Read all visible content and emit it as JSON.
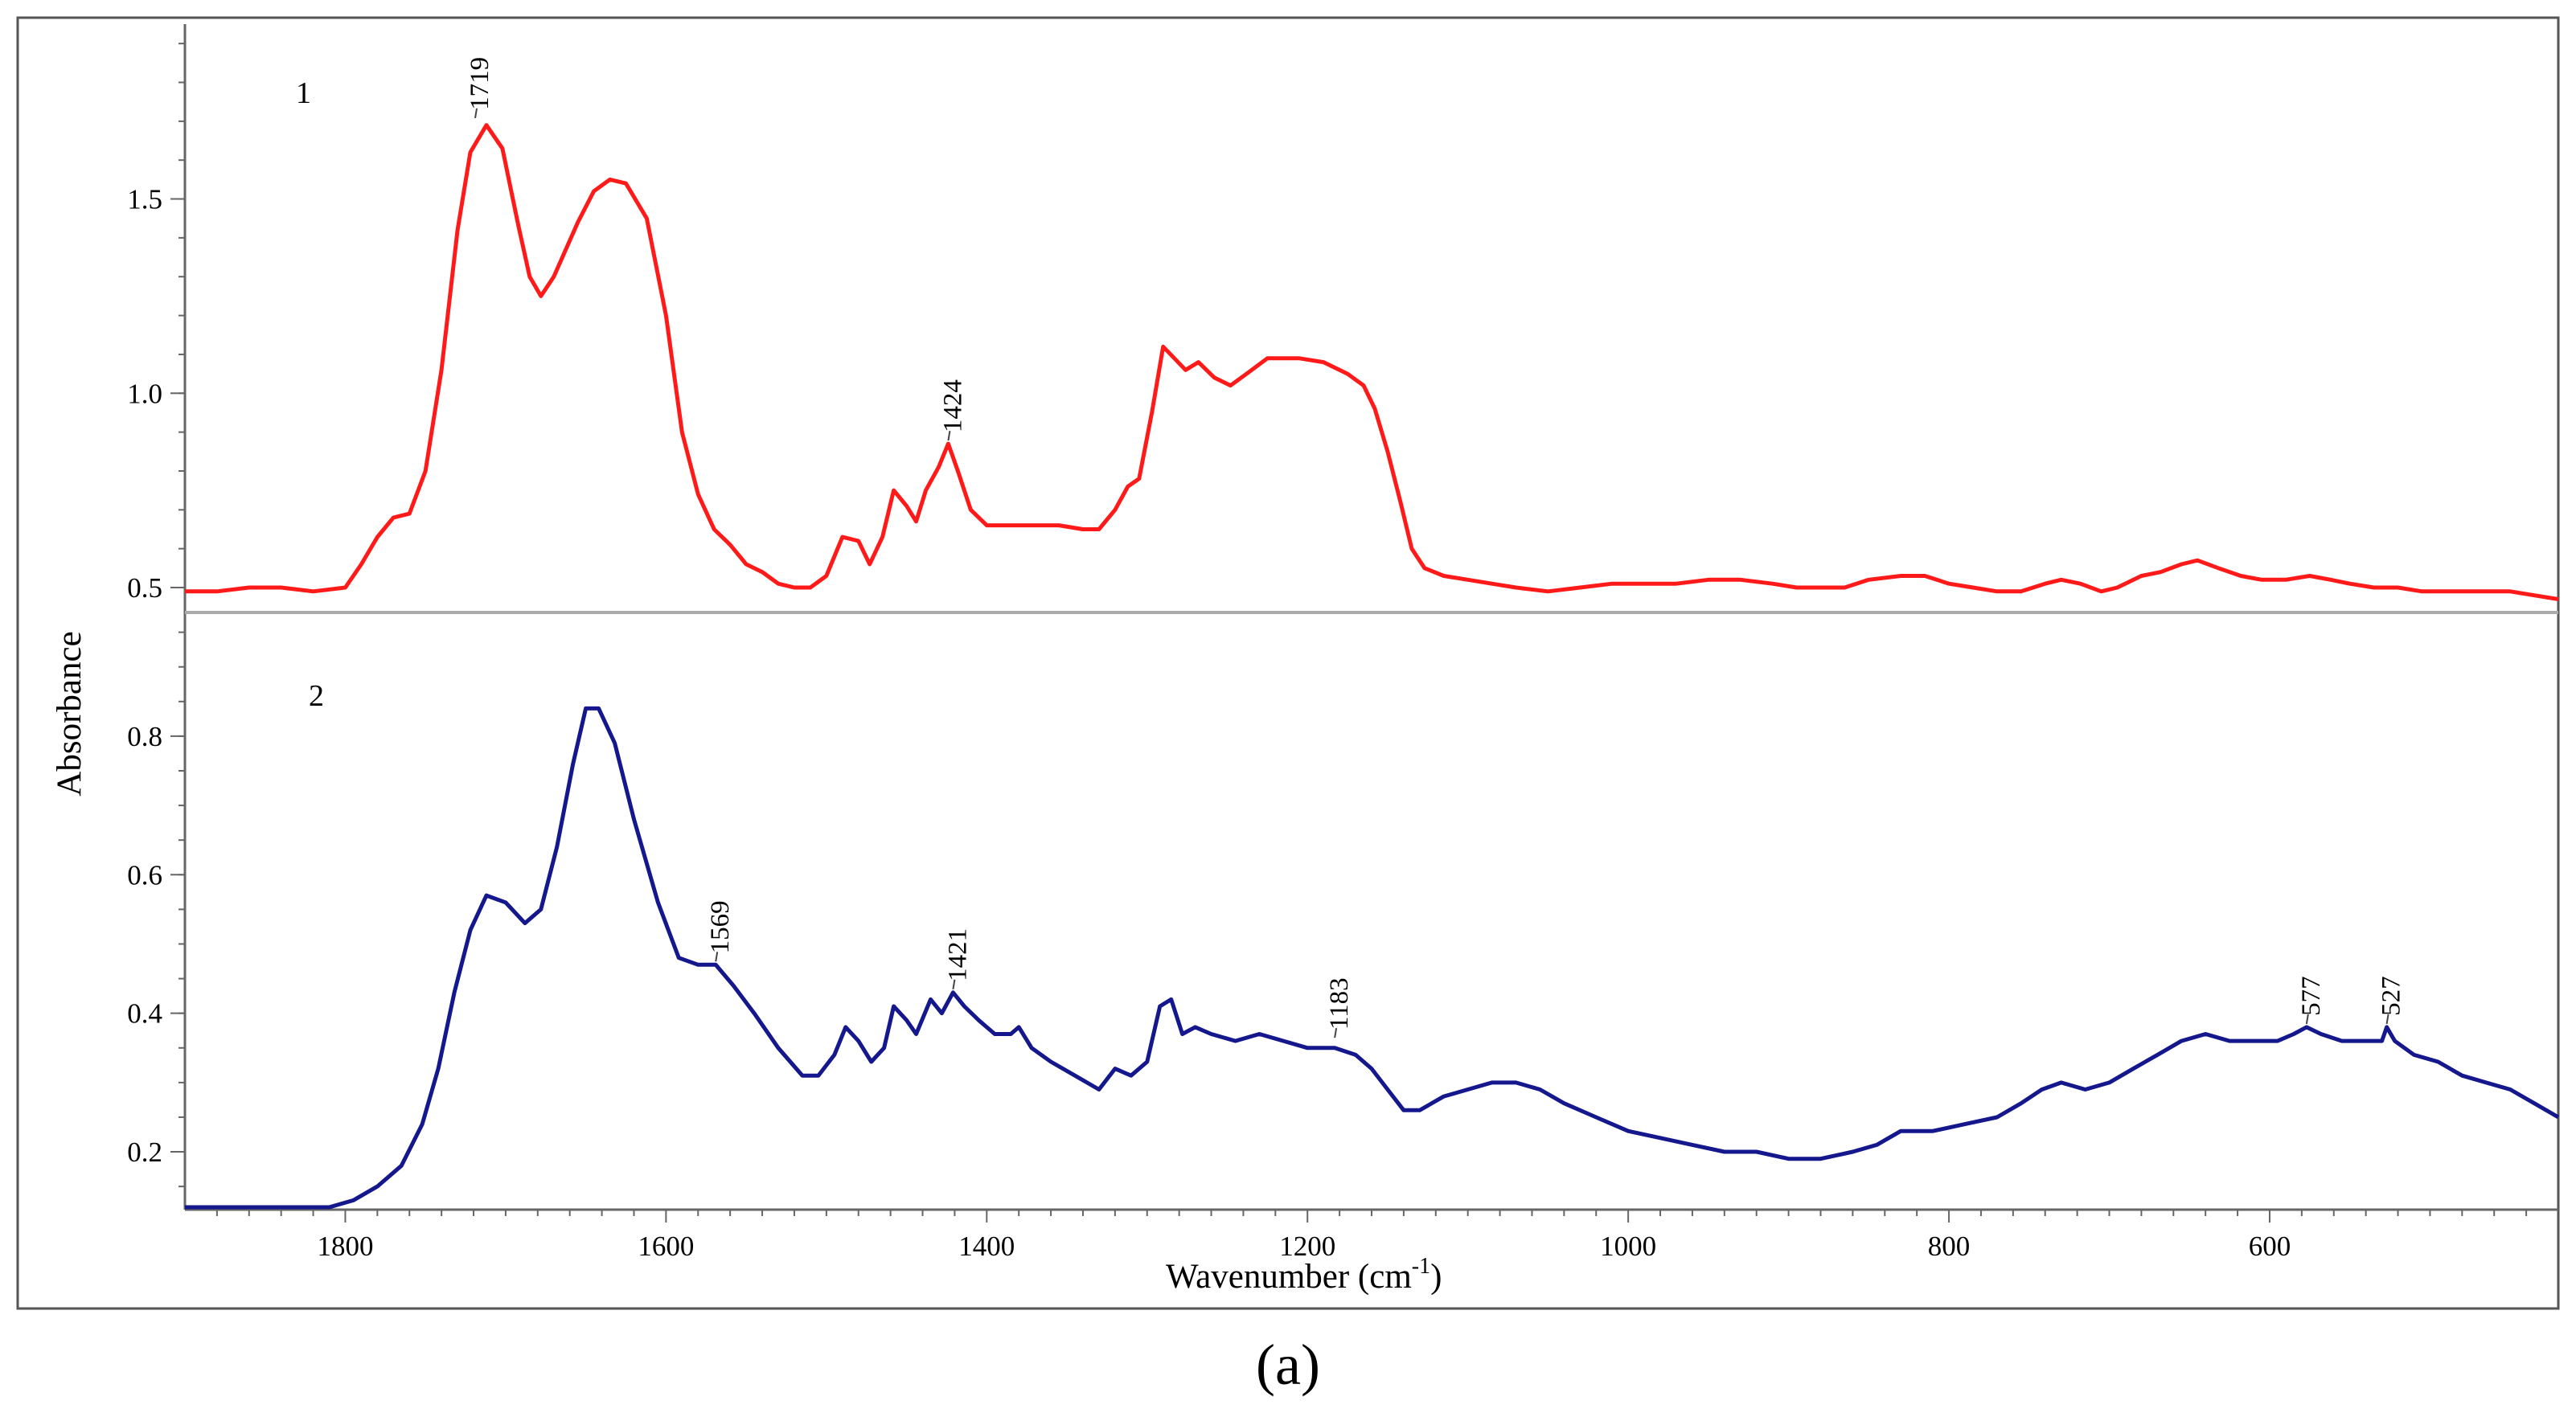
{
  "chart_data": {
    "type": "line",
    "figure_label": "(a)",
    "xlabel": "Wavenumber (cm",
    "xlabel_sup": "-1",
    "xlabel_end": ")",
    "ylabel": "Absorbance",
    "x_range": [
      1900,
      420
    ],
    "x_ticks": [
      1800,
      1600,
      1400,
      1200,
      1000,
      800,
      600
    ],
    "panels": [
      {
        "id": "top",
        "trace_label": "1",
        "color": "#ff1a1a",
        "y_range": [
          0.44,
          1.95
        ],
        "y_ticks": [
          {
            "value": 0.5,
            "label": "0.5"
          },
          {
            "value": 1.0,
            "label": "1.0"
          },
          {
            "value": 1.5,
            "label": "1.5"
          }
        ],
        "peaks": [
          {
            "x": 1719,
            "y": 1.7,
            "label": "1719"
          },
          {
            "x": 1424,
            "y": 0.87,
            "label": "1424"
          }
        ],
        "points": [
          [
            1900,
            0.49
          ],
          [
            1880,
            0.49
          ],
          [
            1860,
            0.5
          ],
          [
            1840,
            0.5
          ],
          [
            1820,
            0.49
          ],
          [
            1800,
            0.5
          ],
          [
            1790,
            0.56
          ],
          [
            1780,
            0.63
          ],
          [
            1770,
            0.68
          ],
          [
            1760,
            0.69
          ],
          [
            1750,
            0.8
          ],
          [
            1740,
            1.06
          ],
          [
            1730,
            1.42
          ],
          [
            1722,
            1.62
          ],
          [
            1712,
            1.69
          ],
          [
            1702,
            1.63
          ],
          [
            1692,
            1.43
          ],
          [
            1685,
            1.3
          ],
          [
            1678,
            1.25
          ],
          [
            1670,
            1.3
          ],
          [
            1655,
            1.44
          ],
          [
            1645,
            1.52
          ],
          [
            1635,
            1.55
          ],
          [
            1625,
            1.54
          ],
          [
            1612,
            1.45
          ],
          [
            1600,
            1.2
          ],
          [
            1590,
            0.9
          ],
          [
            1580,
            0.74
          ],
          [
            1570,
            0.65
          ],
          [
            1560,
            0.61
          ],
          [
            1550,
            0.56
          ],
          [
            1540,
            0.54
          ],
          [
            1530,
            0.51
          ],
          [
            1520,
            0.5
          ],
          [
            1510,
            0.5
          ],
          [
            1500,
            0.53
          ],
          [
            1490,
            0.63
          ],
          [
            1480,
            0.62
          ],
          [
            1473,
            0.56
          ],
          [
            1465,
            0.63
          ],
          [
            1458,
            0.75
          ],
          [
            1450,
            0.71
          ],
          [
            1444,
            0.67
          ],
          [
            1438,
            0.75
          ],
          [
            1430,
            0.81
          ],
          [
            1424,
            0.87
          ],
          [
            1418,
            0.8
          ],
          [
            1410,
            0.7
          ],
          [
            1400,
            0.66
          ],
          [
            1385,
            0.66
          ],
          [
            1370,
            0.66
          ],
          [
            1355,
            0.66
          ],
          [
            1340,
            0.65
          ],
          [
            1330,
            0.65
          ],
          [
            1320,
            0.7
          ],
          [
            1312,
            0.76
          ],
          [
            1305,
            0.78
          ],
          [
            1297,
            0.95
          ],
          [
            1290,
            1.12
          ],
          [
            1283,
            1.09
          ],
          [
            1276,
            1.06
          ],
          [
            1268,
            1.08
          ],
          [
            1258,
            1.04
          ],
          [
            1248,
            1.02
          ],
          [
            1238,
            1.05
          ],
          [
            1225,
            1.09
          ],
          [
            1205,
            1.09
          ],
          [
            1190,
            1.08
          ],
          [
            1175,
            1.05
          ],
          [
            1165,
            1.02
          ],
          [
            1158,
            0.96
          ],
          [
            1150,
            0.85
          ],
          [
            1142,
            0.72
          ],
          [
            1135,
            0.6
          ],
          [
            1127,
            0.55
          ],
          [
            1115,
            0.53
          ],
          [
            1100,
            0.52
          ],
          [
            1085,
            0.51
          ],
          [
            1070,
            0.5
          ],
          [
            1050,
            0.49
          ],
          [
            1030,
            0.5
          ],
          [
            1010,
            0.51
          ],
          [
            990,
            0.51
          ],
          [
            970,
            0.51
          ],
          [
            950,
            0.52
          ],
          [
            930,
            0.52
          ],
          [
            910,
            0.51
          ],
          [
            895,
            0.5
          ],
          [
            880,
            0.5
          ],
          [
            865,
            0.5
          ],
          [
            850,
            0.52
          ],
          [
            830,
            0.53
          ],
          [
            815,
            0.53
          ],
          [
            800,
            0.51
          ],
          [
            785,
            0.5
          ],
          [
            770,
            0.49
          ],
          [
            755,
            0.49
          ],
          [
            740,
            0.51
          ],
          [
            730,
            0.52
          ],
          [
            718,
            0.51
          ],
          [
            705,
            0.49
          ],
          [
            695,
            0.5
          ],
          [
            680,
            0.53
          ],
          [
            668,
            0.54
          ],
          [
            655,
            0.56
          ],
          [
            645,
            0.57
          ],
          [
            632,
            0.55
          ],
          [
            618,
            0.53
          ],
          [
            605,
            0.52
          ],
          [
            590,
            0.52
          ],
          [
            575,
            0.53
          ],
          [
            562,
            0.52
          ],
          [
            550,
            0.51
          ],
          [
            535,
            0.5
          ],
          [
            520,
            0.5
          ],
          [
            505,
            0.49
          ],
          [
            490,
            0.49
          ],
          [
            470,
            0.49
          ],
          [
            450,
            0.49
          ],
          [
            435,
            0.48
          ],
          [
            420,
            0.47
          ]
        ]
      },
      {
        "id": "bottom",
        "trace_label": "2",
        "color": "#15188c",
        "y_range": [
          0.12,
          0.96
        ],
        "y_ticks": [
          {
            "value": 0.2,
            "label": "0.2"
          },
          {
            "value": 0.4,
            "label": "0.4"
          },
          {
            "value": 0.6,
            "label": "0.6"
          },
          {
            "value": 0.8,
            "label": "0.8"
          }
        ],
        "peaks": [
          {
            "x": 1569,
            "y": 0.47,
            "label": "1569"
          },
          {
            "x": 1421,
            "y": 0.43,
            "label": "1421"
          },
          {
            "x": 1183,
            "y": 0.36,
            "label": "1183"
          },
          {
            "x": 577,
            "y": 0.38,
            "label": "577"
          },
          {
            "x": 527,
            "y": 0.38,
            "label": "527"
          }
        ],
        "points": [
          [
            1900,
            0.12
          ],
          [
            1850,
            0.12
          ],
          [
            1810,
            0.12
          ],
          [
            1795,
            0.13
          ],
          [
            1780,
            0.15
          ],
          [
            1765,
            0.18
          ],
          [
            1752,
            0.24
          ],
          [
            1742,
            0.32
          ],
          [
            1732,
            0.43
          ],
          [
            1722,
            0.52
          ],
          [
            1712,
            0.57
          ],
          [
            1700,
            0.56
          ],
          [
            1688,
            0.53
          ],
          [
            1678,
            0.55
          ],
          [
            1668,
            0.64
          ],
          [
            1658,
            0.76
          ],
          [
            1650,
            0.84
          ],
          [
            1642,
            0.84
          ],
          [
            1632,
            0.79
          ],
          [
            1620,
            0.68
          ],
          [
            1605,
            0.56
          ],
          [
            1592,
            0.48
          ],
          [
            1580,
            0.47
          ],
          [
            1569,
            0.47
          ],
          [
            1558,
            0.44
          ],
          [
            1545,
            0.4
          ],
          [
            1530,
            0.35
          ],
          [
            1515,
            0.31
          ],
          [
            1505,
            0.31
          ],
          [
            1495,
            0.34
          ],
          [
            1488,
            0.38
          ],
          [
            1480,
            0.36
          ],
          [
            1472,
            0.33
          ],
          [
            1464,
            0.35
          ],
          [
            1458,
            0.41
          ],
          [
            1450,
            0.39
          ],
          [
            1444,
            0.37
          ],
          [
            1435,
            0.42
          ],
          [
            1428,
            0.4
          ],
          [
            1421,
            0.43
          ],
          [
            1414,
            0.41
          ],
          [
            1405,
            0.39
          ],
          [
            1395,
            0.37
          ],
          [
            1385,
            0.37
          ],
          [
            1380,
            0.38
          ],
          [
            1372,
            0.35
          ],
          [
            1360,
            0.33
          ],
          [
            1345,
            0.31
          ],
          [
            1330,
            0.29
          ],
          [
            1320,
            0.32
          ],
          [
            1310,
            0.31
          ],
          [
            1300,
            0.33
          ],
          [
            1292,
            0.41
          ],
          [
            1285,
            0.42
          ],
          [
            1278,
            0.37
          ],
          [
            1270,
            0.38
          ],
          [
            1260,
            0.37
          ],
          [
            1245,
            0.36
          ],
          [
            1230,
            0.37
          ],
          [
            1215,
            0.36
          ],
          [
            1200,
            0.35
          ],
          [
            1183,
            0.35
          ],
          [
            1170,
            0.34
          ],
          [
            1160,
            0.32
          ],
          [
            1150,
            0.29
          ],
          [
            1140,
            0.26
          ],
          [
            1130,
            0.26
          ],
          [
            1115,
            0.28
          ],
          [
            1100,
            0.29
          ],
          [
            1085,
            0.3
          ],
          [
            1070,
            0.3
          ],
          [
            1055,
            0.29
          ],
          [
            1040,
            0.27
          ],
          [
            1020,
            0.25
          ],
          [
            1000,
            0.23
          ],
          [
            980,
            0.22
          ],
          [
            960,
            0.21
          ],
          [
            940,
            0.2
          ],
          [
            920,
            0.2
          ],
          [
            900,
            0.19
          ],
          [
            880,
            0.19
          ],
          [
            860,
            0.2
          ],
          [
            845,
            0.21
          ],
          [
            830,
            0.23
          ],
          [
            810,
            0.23
          ],
          [
            790,
            0.24
          ],
          [
            770,
            0.25
          ],
          [
            755,
            0.27
          ],
          [
            742,
            0.29
          ],
          [
            730,
            0.3
          ],
          [
            715,
            0.29
          ],
          [
            700,
            0.3
          ],
          [
            685,
            0.32
          ],
          [
            670,
            0.34
          ],
          [
            655,
            0.36
          ],
          [
            640,
            0.37
          ],
          [
            625,
            0.36
          ],
          [
            610,
            0.36
          ],
          [
            595,
            0.36
          ],
          [
            585,
            0.37
          ],
          [
            577,
            0.38
          ],
          [
            568,
            0.37
          ],
          [
            555,
            0.36
          ],
          [
            540,
            0.36
          ],
          [
            530,
            0.36
          ],
          [
            527,
            0.38
          ],
          [
            522,
            0.36
          ],
          [
            510,
            0.34
          ],
          [
            495,
            0.33
          ],
          [
            480,
            0.31
          ],
          [
            465,
            0.3
          ],
          [
            450,
            0.29
          ],
          [
            435,
            0.27
          ],
          [
            420,
            0.25
          ]
        ]
      }
    ]
  }
}
